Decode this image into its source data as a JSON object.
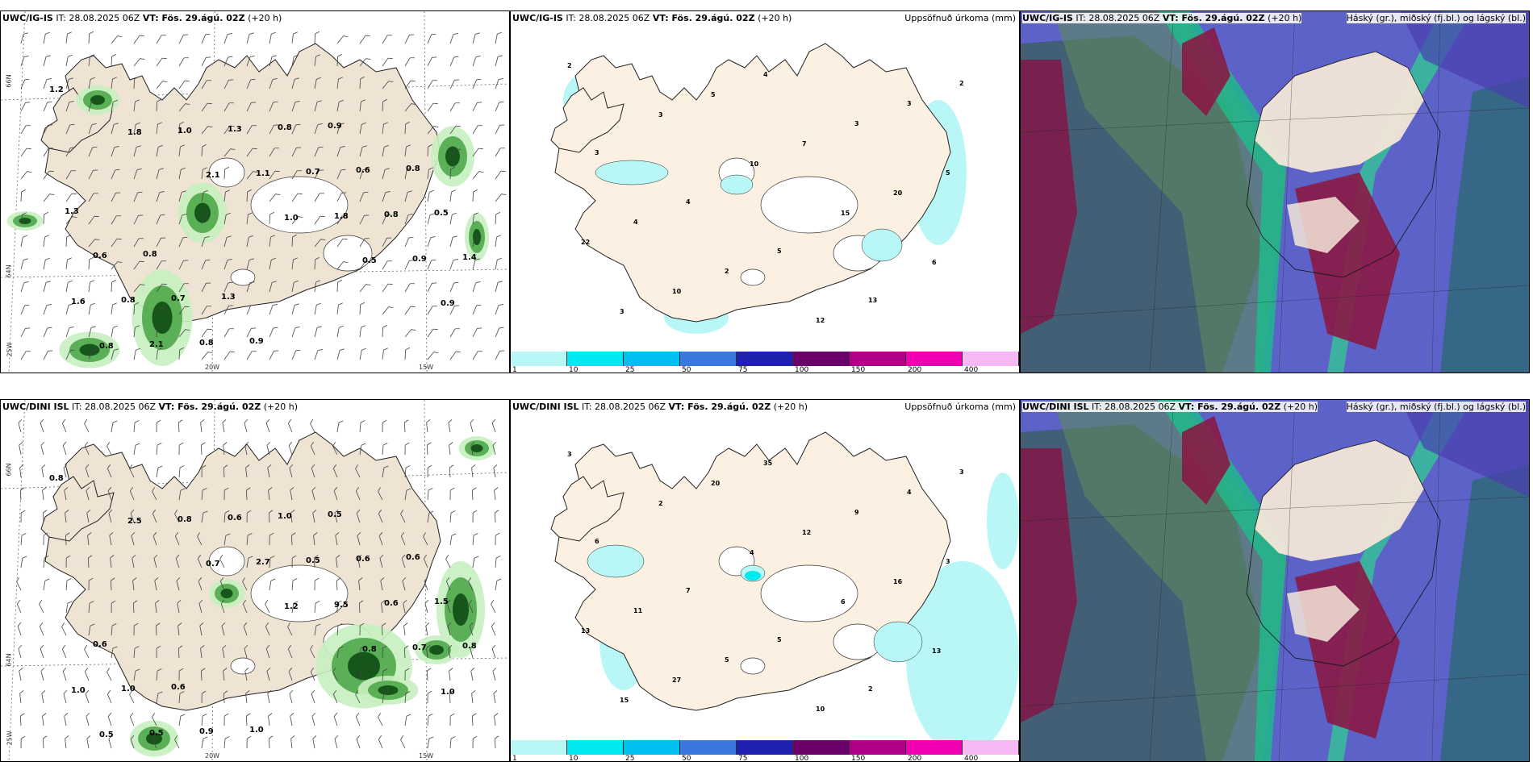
{
  "panels": [
    {
      "title_model": "UWC/IG-IS",
      "title_it": "IT: 28.08.2025 06Z",
      "title_vt": "VT: Fös. 29.ágú. 02Z",
      "title_h": "(+20 h)",
      "right": ""
    },
    {
      "title_model": "UWC/IG-IS",
      "title_it": "IT: 28.08.2025 06Z",
      "title_vt": "VT: Fös. 29.ágú. 02Z",
      "title_h": "(+20 h)",
      "right": "Uppsöfnuð úrkoma (mm)"
    },
    {
      "title_model": "UWC/IG-IS",
      "title_it": "IT: 28.08.2025 06Z",
      "title_vt": "VT: Fös. 29.ágú. 02Z",
      "title_h": "(+20 h)",
      "right": "Háský (gr.), miðský (fj.bl.) og lágský (bl.)"
    },
    {
      "title_model": "UWC/DINI ISL",
      "title_it": "IT: 28.08.2025 06Z",
      "title_vt": "VT: Fös. 29.ágú. 02Z",
      "title_h": "(+20 h)",
      "right": ""
    },
    {
      "title_model": "UWC/DINI ISL",
      "title_it": "IT: 28.08.2025 06Z",
      "title_vt": "VT: Fös. 29.ágú. 02Z",
      "title_h": "(+20 h)",
      "right": "Uppsöfnuð úrkoma (mm)"
    },
    {
      "title_model": "UWC/DINI ISL",
      "title_it": "IT: 28.08.2025 06Z",
      "title_vt": "VT: Fös. 29.ágú. 02Z",
      "title_h": "(+20 h)",
      "right": "Háský (gr.), miðský (fj.bl.) og lágský (bl.)"
    }
  ],
  "coords": {
    "lat66": "66N",
    "lat64": "64N",
    "lon20": "20W",
    "lon15": "15W",
    "lon25": "25W"
  },
  "colorbar": {
    "labels": [
      "1",
      "10",
      "25",
      "50",
      "75",
      "100",
      "150",
      "200",
      "400"
    ],
    "colors": [
      "#b9f7f7",
      "#00e8f0",
      "#00bff0",
      "#3a78e0",
      "#2020b0",
      "#6a006a",
      "#b0008a",
      "#f000b0",
      "#f5b8f5"
    ]
  },
  "precip_labels_top": [
    "1.2",
    "1.8",
    "2.1",
    "1.0",
    "0.5",
    "0.9",
    "0.8",
    "1.0",
    "1.1",
    "1.8",
    "0.9",
    "1.6",
    "2.1",
    "1.3",
    "0.7",
    "0.8",
    "1.4",
    "0.8",
    "0.8",
    "0.8",
    "0.6",
    "0.5",
    "0.6",
    "0.7",
    "0.9",
    "0.9",
    "0.8",
    "1.3",
    "0.8",
    "1.3"
  ],
  "precip_labels_bot": [
    "0.8",
    "2.5",
    "0.7",
    "1.2",
    "0.8",
    "1.0",
    "0.5",
    "0.8",
    "2.7",
    "9.5",
    "0.7",
    "1.0",
    "0.5",
    "0.6",
    "0.5",
    "0.6",
    "0.8",
    "1.0",
    "0.9",
    "1.0",
    "0.6",
    "1.5",
    "0.6",
    "0.6",
    "1.0",
    "0.5",
    "0.6"
  ],
  "accum_labels_top": [
    "2",
    "3",
    "10",
    "15",
    "6",
    "3",
    "5",
    "7",
    "20",
    "22",
    "10",
    "4",
    "3",
    "5",
    "4",
    "2",
    "12",
    "3",
    "3",
    "4",
    "5",
    "13",
    "2"
  ],
  "accum_labels_bot": [
    "3",
    "2",
    "4",
    "6",
    "13",
    "15",
    "20",
    "12",
    "16",
    "13",
    "27",
    "35",
    "9",
    "3",
    "11",
    "5",
    "10",
    "4",
    "6",
    "7",
    "5",
    "2",
    "3"
  ]
}
